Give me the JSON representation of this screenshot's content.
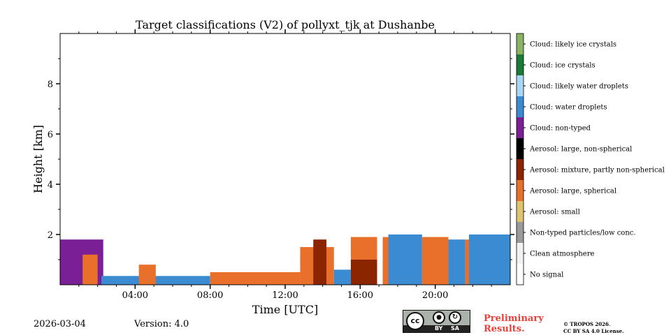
{
  "chart_data": {
    "type": "heatmap",
    "title": "Target classifications (V2) of pollyxt_tjk at Dushanbe",
    "xlabel": "Time [UTC]",
    "ylabel": "Height [km]",
    "xlim_hours": [
      0,
      24
    ],
    "ylim_km": [
      0,
      10
    ],
    "xticks": [
      {
        "value": 4,
        "label": "04:00"
      },
      {
        "value": 8,
        "label": "08:00"
      },
      {
        "value": 12,
        "label": "12:00"
      },
      {
        "value": 16,
        "label": "16:00"
      },
      {
        "value": 20,
        "label": "20:00"
      }
    ],
    "yticks": [
      {
        "value": 2,
        "label": "2"
      },
      {
        "value": 4,
        "label": "4"
      },
      {
        "value": 6,
        "label": "6"
      },
      {
        "value": 8,
        "label": "8"
      }
    ],
    "legend": [
      {
        "label": "Cloud: likely ice crystals",
        "color": "#8ab464"
      },
      {
        "label": "Cloud: ice crystals",
        "color": "#1b7a3a"
      },
      {
        "label": "Cloud: likely water droplets",
        "color": "#a9d8f7"
      },
      {
        "label": "Cloud: water droplets",
        "color": "#3a8bd1"
      },
      {
        "label": "Cloud: non-typed",
        "color": "#7a1f96"
      },
      {
        "label": "Aerosol: large, non-spherical",
        "color": "#000000"
      },
      {
        "label": "Aerosol: mixture, partly non-spherical",
        "color": "#8b2500"
      },
      {
        "label": "Aerosol: large, spherical",
        "color": "#e8702a"
      },
      {
        "label": "Aerosol: small",
        "color": "#dfc46f"
      },
      {
        "label": "Non-typed particles/low conc.",
        "color": "#9a9a9a"
      },
      {
        "label": "Clean atmosphere",
        "color": "#f2f2f2"
      },
      {
        "label": "No signal",
        "color": "#ffffff"
      }
    ],
    "regions": [
      {
        "class": "Aerosol: mixture, partly non-spherical",
        "t_start": 0.0,
        "t_end": 2.2,
        "h_top": 1.6
      },
      {
        "class": "Cloud: non-typed",
        "t_start": 0.0,
        "t_end": 2.3,
        "h_top": 1.8
      },
      {
        "class": "Aerosol: large, spherical",
        "t_start": 1.2,
        "t_end": 2.0,
        "h_top": 1.2
      },
      {
        "class": "Cloud: water droplets",
        "t_start": 2.2,
        "t_end": 8.0,
        "h_top": 0.35
      },
      {
        "class": "Aerosol: large, spherical",
        "t_start": 4.2,
        "t_end": 5.1,
        "h_top": 0.8
      },
      {
        "class": "Aerosol: large, spherical",
        "t_start": 8.0,
        "t_end": 12.8,
        "h_top": 0.5
      },
      {
        "class": "Aerosol: large, spherical",
        "t_start": 12.8,
        "t_end": 14.6,
        "h_top": 1.5
      },
      {
        "class": "Aerosol: mixture, partly non-spherical",
        "t_start": 13.5,
        "t_end": 14.2,
        "h_top": 1.8
      },
      {
        "class": "Cloud: water droplets",
        "t_start": 14.6,
        "t_end": 15.5,
        "h_top": 0.6
      },
      {
        "class": "Aerosol: large, spherical",
        "t_start": 15.5,
        "t_end": 16.9,
        "h_top": 1.9
      },
      {
        "class": "Aerosol: mixture, partly non-spherical",
        "t_start": 15.5,
        "t_end": 16.9,
        "h_top": 1.0
      },
      {
        "class": "Aerosol: large, spherical",
        "t_start": 17.2,
        "t_end": 18.3,
        "h_top": 1.9
      },
      {
        "class": "Cloud: water droplets",
        "t_start": 17.5,
        "t_end": 19.3,
        "h_top": 2.0
      },
      {
        "class": "Aerosol: large, spherical",
        "t_start": 19.3,
        "t_end": 20.7,
        "h_top": 1.9
      },
      {
        "class": "Cloud: water droplets",
        "t_start": 20.7,
        "t_end": 21.6,
        "h_top": 1.8
      },
      {
        "class": "Aerosol: large, spherical",
        "t_start": 21.6,
        "t_end": 24.0,
        "h_top": 1.8
      },
      {
        "class": "Cloud: water droplets",
        "t_start": 21.8,
        "t_end": 24.0,
        "h_top": 2.0
      }
    ]
  },
  "footer": {
    "date": "2026-03-04",
    "version": "Version: 4.0",
    "preliminary": "Preliminary Results.",
    "copyright_line1": "© TROPOS 2026.",
    "copyright_line2": "CC BY SA 4.0 License.",
    "license_badge": {
      "main": "cc",
      "by": "BY",
      "sa": "SA"
    }
  }
}
